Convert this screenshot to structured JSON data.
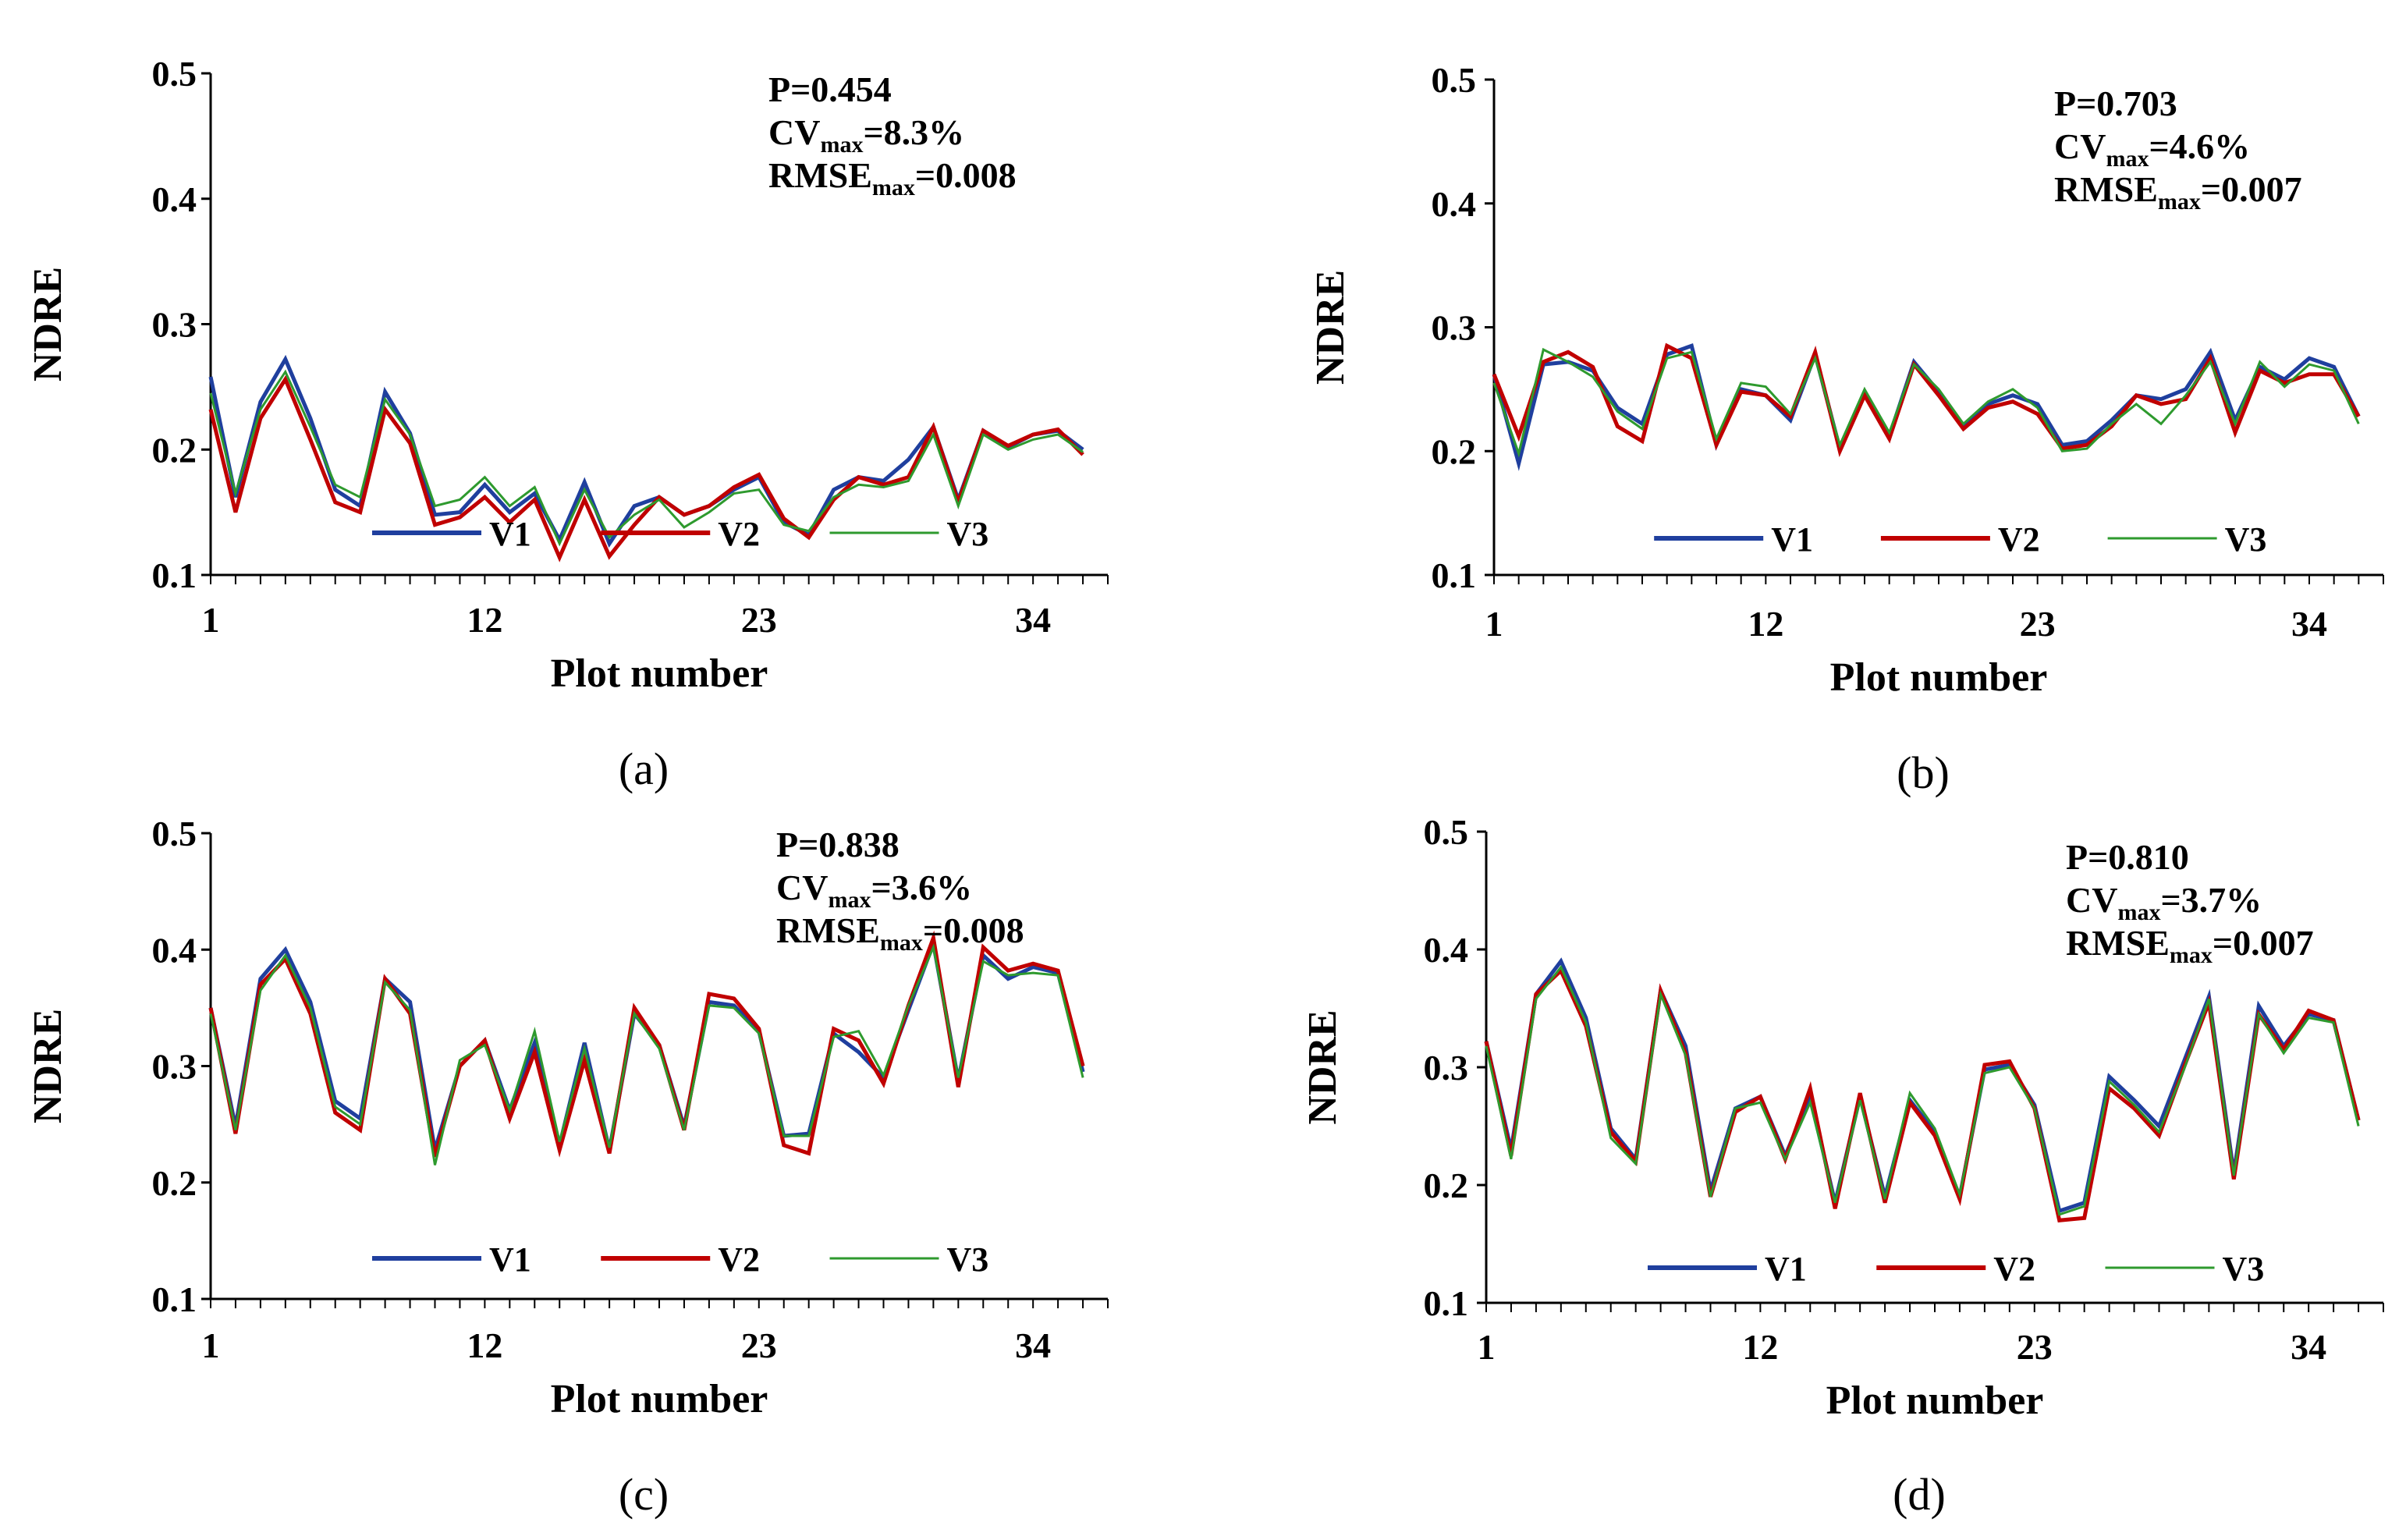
{
  "figure": {
    "colors": {
      "V1": "#1f3f9e",
      "V2": "#c00000",
      "V3": "#2e9a2e",
      "axis": "#000000"
    }
  },
  "chart_data": [
    {
      "type": "line",
      "panel_label": "(a)",
      "xlabel": "Plot number",
      "ylabel": "NDRE",
      "ylim": [
        0.1,
        0.5
      ],
      "yticks": [
        "0.1",
        "0.2",
        "0.3",
        "0.4",
        "0.5"
      ],
      "xlim": [
        1,
        37
      ],
      "xticks": [
        "1",
        "12",
        "23",
        "34"
      ],
      "legend_position": "bottom-center",
      "annotations": [
        {
          "main": "P=0.454",
          "sub": "",
          "tail": ""
        },
        {
          "main": "CV",
          "sub": "max",
          "tail": "=8.3%"
        },
        {
          "main": "RMSE",
          "sub": "max",
          "tail": "=0.008"
        }
      ],
      "series": [
        {
          "name": "V1",
          "values": [
            0.258,
            0.162,
            0.238,
            0.272,
            0.225,
            0.168,
            0.155,
            0.246,
            0.213,
            0.148,
            0.15,
            0.172,
            0.15,
            0.165,
            0.128,
            0.174,
            0.125,
            0.155,
            0.162,
            0.148,
            0.155,
            0.168,
            0.178,
            0.142,
            0.132,
            0.168,
            0.178,
            0.175,
            0.192,
            0.218,
            0.16,
            0.215,
            0.202,
            0.212,
            0.215,
            0.2
          ]
        },
        {
          "name": "V2",
          "values": [
            0.232,
            0.15,
            0.225,
            0.256,
            0.208,
            0.158,
            0.15,
            0.232,
            0.205,
            0.14,
            0.146,
            0.162,
            0.142,
            0.16,
            0.114,
            0.16,
            0.115,
            0.14,
            0.162,
            0.148,
            0.155,
            0.17,
            0.18,
            0.145,
            0.13,
            0.16,
            0.178,
            0.172,
            0.178,
            0.218,
            0.158,
            0.215,
            0.203,
            0.212,
            0.216,
            0.196
          ]
        },
        {
          "name": "V3",
          "values": [
            0.245,
            0.165,
            0.232,
            0.262,
            0.218,
            0.172,
            0.162,
            0.24,
            0.212,
            0.155,
            0.16,
            0.178,
            0.155,
            0.17,
            0.125,
            0.168,
            0.13,
            0.148,
            0.16,
            0.138,
            0.15,
            0.165,
            0.168,
            0.14,
            0.135,
            0.162,
            0.172,
            0.17,
            0.175,
            0.212,
            0.155,
            0.212,
            0.2,
            0.208,
            0.212,
            0.198
          ]
        }
      ]
    },
    {
      "type": "line",
      "panel_label": "(b)",
      "xlabel": "Plot number",
      "ylabel": "NDRE",
      "ylim": [
        0.1,
        0.5
      ],
      "yticks": [
        "0.1",
        "0.2",
        "0.3",
        "0.4",
        "0.5"
      ],
      "xlim": [
        1,
        37
      ],
      "xticks": [
        "1",
        "12",
        "23",
        "34"
      ],
      "legend_position": "bottom-center",
      "annotations": [
        {
          "main": "P=0.703",
          "sub": "",
          "tail": ""
        },
        {
          "main": "CV",
          "sub": "max",
          "tail": "=4.6%"
        },
        {
          "main": "RMSE",
          "sub": "max",
          "tail": "=0.007"
        }
      ],
      "series": [
        {
          "name": "V1",
          "values": [
            0.262,
            0.19,
            0.27,
            0.272,
            0.265,
            0.235,
            0.222,
            0.278,
            0.285,
            0.205,
            0.25,
            0.245,
            0.225,
            0.278,
            0.202,
            0.248,
            0.212,
            0.272,
            0.248,
            0.22,
            0.238,
            0.245,
            0.238,
            0.205,
            0.208,
            0.225,
            0.245,
            0.242,
            0.25,
            0.28,
            0.225,
            0.268,
            0.258,
            0.275,
            0.268,
            0.228
          ]
        },
        {
          "name": "V2",
          "values": [
            0.262,
            0.212,
            0.272,
            0.28,
            0.268,
            0.22,
            0.208,
            0.285,
            0.275,
            0.205,
            0.248,
            0.245,
            0.228,
            0.28,
            0.2,
            0.245,
            0.21,
            0.27,
            0.245,
            0.218,
            0.235,
            0.24,
            0.23,
            0.202,
            0.205,
            0.22,
            0.245,
            0.238,
            0.242,
            0.275,
            0.215,
            0.265,
            0.255,
            0.262,
            0.262,
            0.228
          ]
        },
        {
          "name": "V3",
          "values": [
            0.255,
            0.198,
            0.282,
            0.272,
            0.26,
            0.232,
            0.218,
            0.275,
            0.28,
            0.21,
            0.255,
            0.252,
            0.23,
            0.275,
            0.205,
            0.25,
            0.215,
            0.27,
            0.25,
            0.222,
            0.24,
            0.25,
            0.235,
            0.2,
            0.202,
            0.222,
            0.238,
            0.222,
            0.245,
            0.272,
            0.222,
            0.272,
            0.252,
            0.27,
            0.265,
            0.222
          ]
        }
      ]
    },
    {
      "type": "line",
      "panel_label": "(c)",
      "xlabel": "Plot number",
      "ylabel": "NDRE",
      "ylim": [
        0.1,
        0.5
      ],
      "yticks": [
        "0.1",
        "0.2",
        "0.3",
        "0.4",
        "0.5"
      ],
      "xlim": [
        1,
        37
      ],
      "xticks": [
        "1",
        "12",
        "23",
        "34"
      ],
      "legend_position": "bottom-center",
      "annotations": [
        {
          "main": "P=0.838",
          "sub": "",
          "tail": ""
        },
        {
          "main": "CV",
          "sub": "max",
          "tail": "=3.6%"
        },
        {
          "main": "RMSE",
          "sub": "max",
          "tail": "=0.008"
        }
      ],
      "series": [
        {
          "name": "V1",
          "values": [
            0.35,
            0.248,
            0.375,
            0.4,
            0.355,
            0.27,
            0.255,
            0.375,
            0.355,
            0.228,
            0.3,
            0.322,
            0.262,
            0.32,
            0.232,
            0.32,
            0.228,
            0.345,
            0.318,
            0.248,
            0.355,
            0.352,
            0.33,
            0.24,
            0.242,
            0.328,
            0.312,
            0.29,
            0.348,
            0.405,
            0.288,
            0.395,
            0.375,
            0.385,
            0.38,
            0.295
          ]
        },
        {
          "name": "V2",
          "values": [
            0.35,
            0.242,
            0.37,
            0.392,
            0.345,
            0.26,
            0.245,
            0.375,
            0.345,
            0.222,
            0.3,
            0.322,
            0.255,
            0.312,
            0.228,
            0.305,
            0.225,
            0.35,
            0.318,
            0.245,
            0.362,
            0.358,
            0.332,
            0.232,
            0.225,
            0.332,
            0.322,
            0.285,
            0.352,
            0.41,
            0.282,
            0.402,
            0.382,
            0.388,
            0.382,
            0.3
          ]
        },
        {
          "name": "V3",
          "values": [
            0.345,
            0.245,
            0.365,
            0.395,
            0.35,
            0.265,
            0.25,
            0.372,
            0.348,
            0.215,
            0.305,
            0.318,
            0.262,
            0.33,
            0.235,
            0.315,
            0.23,
            0.345,
            0.315,
            0.245,
            0.352,
            0.35,
            0.328,
            0.24,
            0.24,
            0.325,
            0.33,
            0.292,
            0.352,
            0.402,
            0.29,
            0.39,
            0.378,
            0.38,
            0.378,
            0.29
          ]
        }
      ]
    },
    {
      "type": "line",
      "panel_label": "(d)",
      "xlabel": "Plot number",
      "ylabel": "NDRE",
      "ylim": [
        0.1,
        0.5
      ],
      "yticks": [
        "0.1",
        "0.2",
        "0.3",
        "0.4",
        "0.5"
      ],
      "xlim": [
        1,
        37
      ],
      "xticks": [
        "1",
        "12",
        "23",
        "34"
      ],
      "legend_position": "bottom-center",
      "annotations": [
        {
          "main": "P=0.810",
          "sub": "",
          "tail": ""
        },
        {
          "main": "CV",
          "sub": "max",
          "tail": "=3.7%"
        },
        {
          "main": "RMSE",
          "sub": "max",
          "tail": "=0.007"
        }
      ],
      "series": [
        {
          "name": "V1",
          "values": [
            0.322,
            0.23,
            0.362,
            0.39,
            0.342,
            0.248,
            0.222,
            0.365,
            0.318,
            0.195,
            0.265,
            0.275,
            0.225,
            0.275,
            0.185,
            0.275,
            0.19,
            0.272,
            0.245,
            0.19,
            0.298,
            0.302,
            0.268,
            0.178,
            0.185,
            0.292,
            0.272,
            0.25,
            0.305,
            0.36,
            0.21,
            0.352,
            0.318,
            0.345,
            0.34,
            0.255
          ]
        },
        {
          "name": "V2",
          "values": [
            0.322,
            0.225,
            0.362,
            0.382,
            0.335,
            0.245,
            0.22,
            0.365,
            0.312,
            0.19,
            0.262,
            0.275,
            0.222,
            0.282,
            0.18,
            0.278,
            0.185,
            0.27,
            0.242,
            0.188,
            0.302,
            0.305,
            0.265,
            0.17,
            0.172,
            0.282,
            0.265,
            0.242,
            0.3,
            0.355,
            0.205,
            0.345,
            0.315,
            0.348,
            0.34,
            0.255
          ]
        },
        {
          "name": "V3",
          "values": [
            0.318,
            0.222,
            0.358,
            0.385,
            0.338,
            0.24,
            0.218,
            0.362,
            0.31,
            0.19,
            0.265,
            0.27,
            0.222,
            0.27,
            0.185,
            0.272,
            0.188,
            0.278,
            0.248,
            0.192,
            0.295,
            0.3,
            0.265,
            0.175,
            0.182,
            0.288,
            0.268,
            0.245,
            0.298,
            0.358,
            0.208,
            0.345,
            0.312,
            0.342,
            0.338,
            0.25
          ]
        }
      ]
    }
  ]
}
